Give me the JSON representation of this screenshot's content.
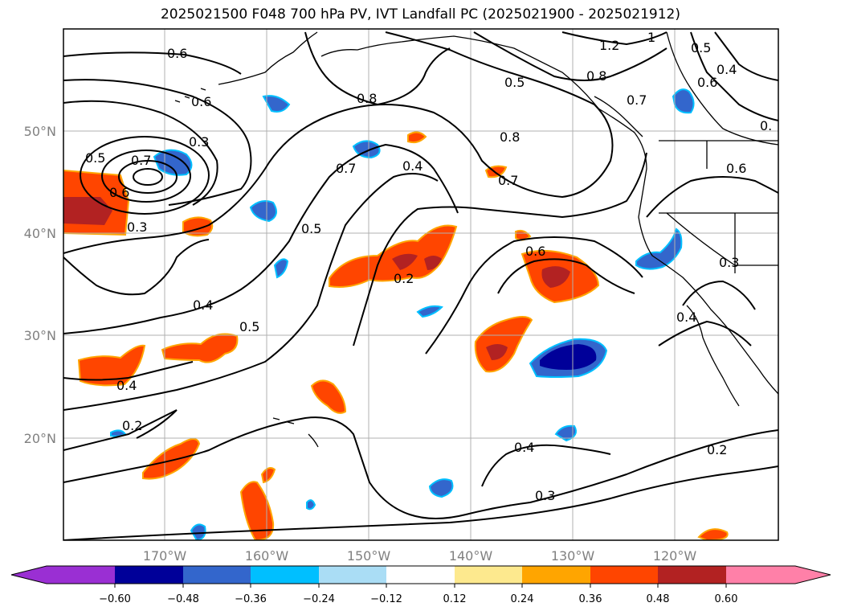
{
  "title": "2025021500 F048 700 hPa PV, IVT Landfall PC (2025021900 - 2025021912)",
  "axes": {
    "lat_ticks": [
      "50°N",
      "40°N",
      "30°N",
      "20°N"
    ],
    "lon_ticks": [
      "170°W",
      "160°W",
      "150°W",
      "140°W",
      "130°W",
      "120°W"
    ]
  },
  "contour_labels": [
    "0.6",
    "0.6",
    "0.8",
    "0.5",
    "0.8",
    "1.2",
    "1",
    "0.5",
    "0.4",
    "0.6",
    "0.7",
    "0.3",
    "0.5",
    "0.7",
    "0.6",
    "0.7",
    "0.4",
    "0.8",
    "0.7",
    "0.6",
    "0.3",
    "0.5",
    "0.2",
    "0.6",
    "0.3",
    "0.4",
    "0.5",
    "0.4",
    "0.4",
    "0.2",
    "0.4",
    "0.3",
    "0.2",
    "0."
  ],
  "colorbar": {
    "ticks": [
      "−0.60",
      "−0.48",
      "−0.36",
      "−0.24",
      "−0.12",
      "0.12",
      "0.24",
      "0.36",
      "0.48",
      "0.60"
    ],
    "colors": [
      "#9a2fd3",
      "#000099",
      "#3366cc",
      "#00bfff",
      "#aaddf5",
      "#ffffff",
      "#fde98e",
      "#ffa500",
      "#ff4500",
      "#b22222",
      "#ff80a8"
    ]
  }
}
